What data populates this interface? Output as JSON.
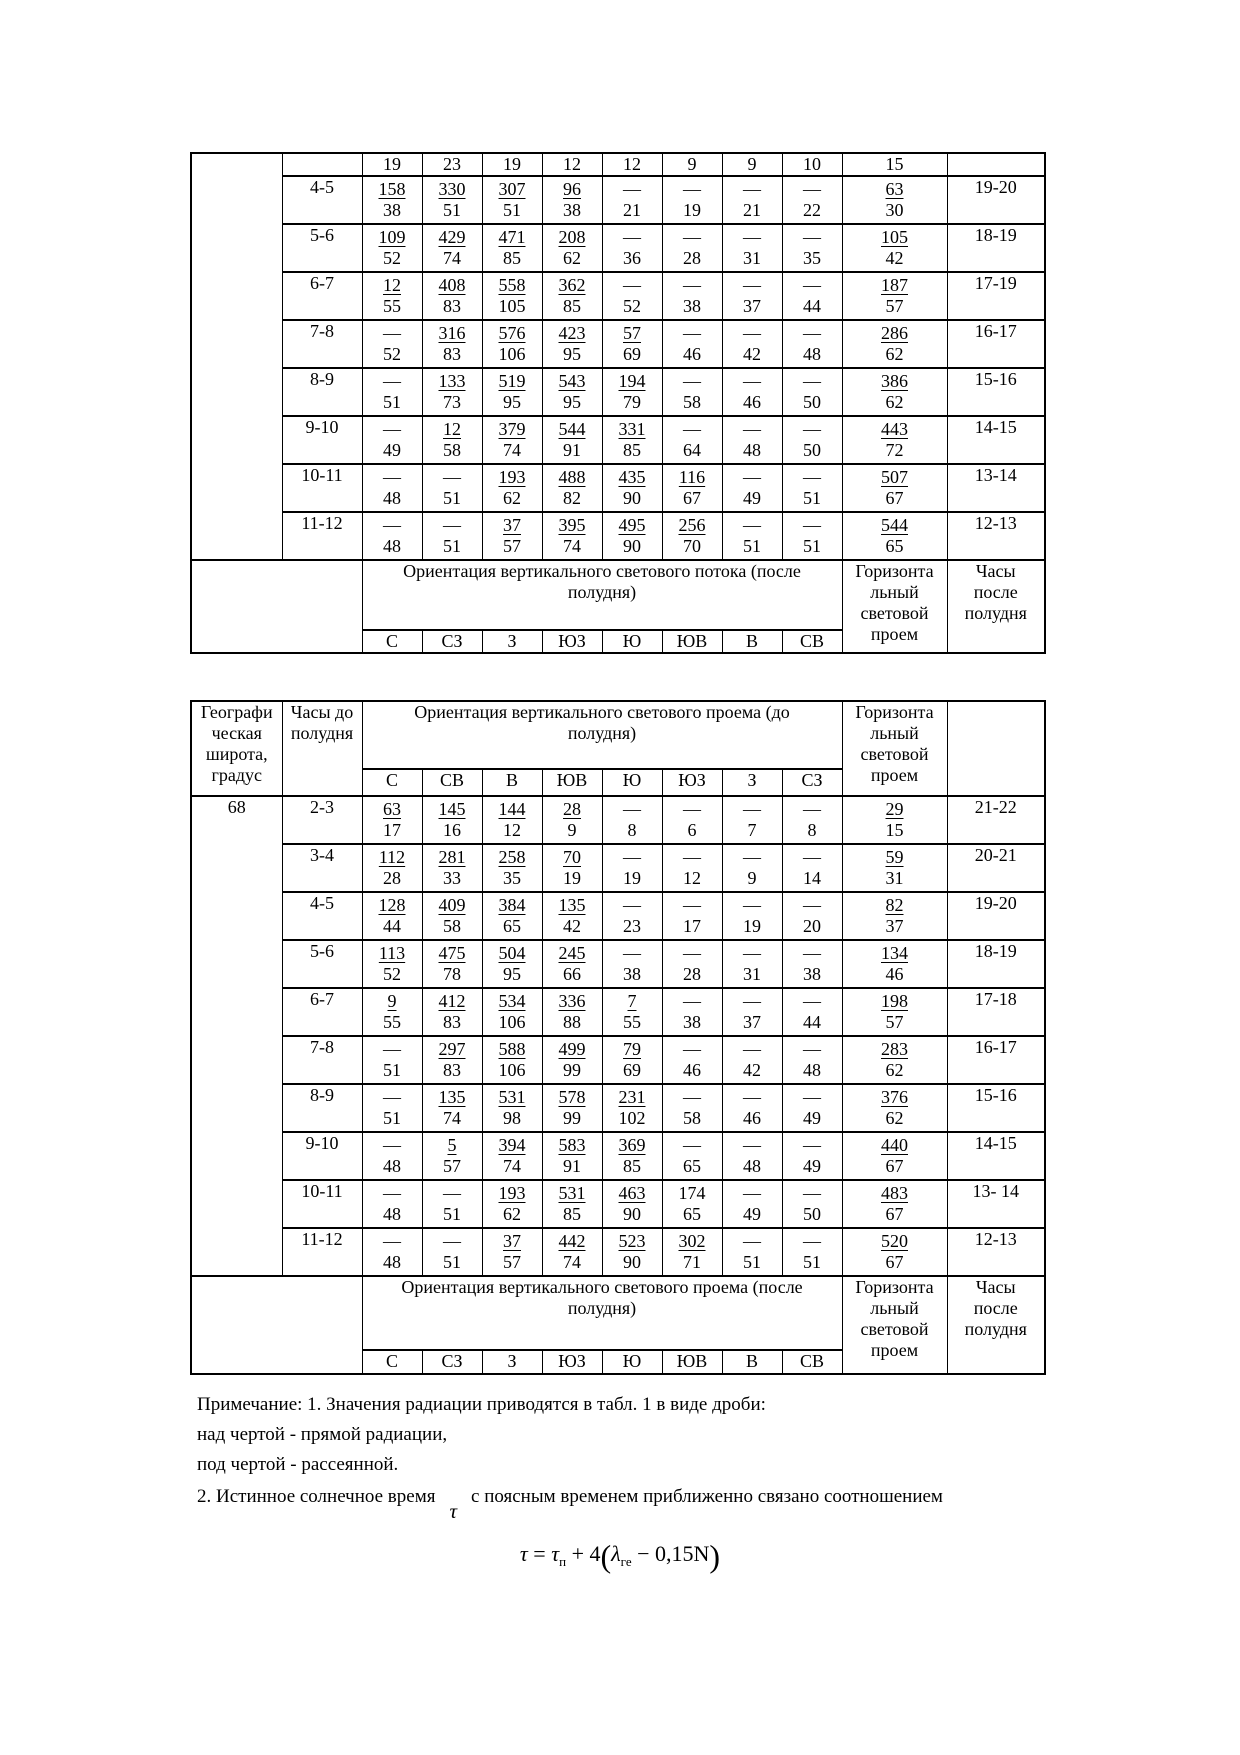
{
  "table1": {
    "partial_top_row": [
      "19",
      "23",
      "19",
      "12",
      "12",
      "9",
      "9",
      "10",
      "15"
    ],
    "rows": [
      {
        "hours": "4-5",
        "cells": [
          [
            "158",
            "38"
          ],
          [
            "330",
            "51"
          ],
          [
            "307",
            "51"
          ],
          [
            "96",
            "38"
          ],
          [
            "",
            "21"
          ],
          [
            "",
            "19"
          ],
          [
            "",
            "21"
          ],
          [
            "",
            "22"
          ]
        ],
        "horizontal": [
          "63",
          "30"
        ],
        "hours_after": "19-20"
      },
      {
        "hours": "5-6",
        "cells": [
          [
            "109",
            "52"
          ],
          [
            "429",
            "74"
          ],
          [
            "471",
            "85"
          ],
          [
            "208",
            "62"
          ],
          [
            "",
            "36"
          ],
          [
            "",
            "28"
          ],
          [
            "",
            "31"
          ],
          [
            "",
            "35"
          ]
        ],
        "horizontal": [
          "105",
          "42"
        ],
        "hours_after": "18-19"
      },
      {
        "hours": "6-7",
        "cells": [
          [
            "12",
            "55"
          ],
          [
            "408",
            "83"
          ],
          [
            "558",
            "105"
          ],
          [
            "362",
            "85"
          ],
          [
            "",
            "52"
          ],
          [
            "",
            "38"
          ],
          [
            "",
            "37"
          ],
          [
            "",
            "44"
          ]
        ],
        "horizontal": [
          "187",
          "57"
        ],
        "hours_after": "17-19"
      },
      {
        "hours": "7-8",
        "cells": [
          [
            "",
            "52"
          ],
          [
            "316",
            "83"
          ],
          [
            "576",
            "106"
          ],
          [
            "423",
            "95"
          ],
          [
            "57",
            "69"
          ],
          [
            "",
            "46"
          ],
          [
            "",
            "42"
          ],
          [
            "",
            "48"
          ]
        ],
        "horizontal": [
          "286",
          "62"
        ],
        "hours_after": "16-17"
      },
      {
        "hours": "8-9",
        "cells": [
          [
            "",
            "51"
          ],
          [
            "133",
            "73"
          ],
          [
            "519",
            "95"
          ],
          [
            "543",
            "95"
          ],
          [
            "194",
            "79"
          ],
          [
            "",
            "58"
          ],
          [
            "",
            "46"
          ],
          [
            "",
            "50"
          ]
        ],
        "horizontal": [
          "386",
          "62"
        ],
        "hours_after": "15-16"
      },
      {
        "hours": "9-10",
        "cells": [
          [
            "",
            "49"
          ],
          [
            "12",
            "58"
          ],
          [
            "379",
            "74"
          ],
          [
            "544",
            "91"
          ],
          [
            "331",
            "85"
          ],
          [
            "",
            "64"
          ],
          [
            "",
            "48"
          ],
          [
            "",
            "50"
          ]
        ],
        "horizontal": [
          "443",
          "72"
        ],
        "hours_after": "14-15"
      },
      {
        "hours": "10-11",
        "cells": [
          [
            "",
            "48"
          ],
          [
            "",
            "51"
          ],
          [
            "193",
            "62"
          ],
          [
            "488",
            "82"
          ],
          [
            "435",
            "90"
          ],
          [
            "116",
            "67"
          ],
          [
            "",
            "49"
          ],
          [
            "",
            "51"
          ]
        ],
        "horizontal": [
          "507",
          "67"
        ],
        "hours_after": "13-14"
      },
      {
        "hours": "11-12",
        "cells": [
          [
            "",
            "48"
          ],
          [
            "",
            "51"
          ],
          [
            "37",
            "57"
          ],
          [
            "395",
            "74"
          ],
          [
            "495",
            "90"
          ],
          [
            "256",
            "70"
          ],
          [
            "",
            "51"
          ],
          [
            "",
            "51"
          ]
        ],
        "horizontal": [
          "544",
          "65"
        ],
        "hours_after": "12-13"
      }
    ],
    "footer": {
      "orientation": "Ориентация вертикального светового потока (после\nполудня)",
      "directions": [
        "С",
        "СЗ",
        "З",
        "ЮЗ",
        "Ю",
        "ЮВ",
        "В",
        "СВ"
      ],
      "horizontal_header": "Горизонта\nльный\nсветовой\nпроем",
      "hours_header": "Часы\nпосле\nполудня"
    }
  },
  "table2": {
    "header": {
      "latitude": "Географи\nческая\nширота,\nградус",
      "hours_before": "Часы до\nполудня",
      "orientation": "Ориентация вертикального светового проема (до\nполудня)",
      "directions": [
        "С",
        "СВ",
        "В",
        "ЮВ",
        "Ю",
        "ЮЗ",
        "З",
        "СЗ"
      ],
      "horizontal_header": "Горизонта\nльный\nсветовой\nпроем"
    },
    "latitude_value": "68",
    "rows": [
      {
        "hours": "2-3",
        "cells": [
          [
            "63",
            "17"
          ],
          [
            "145",
            "16"
          ],
          [
            "144",
            "12"
          ],
          [
            "28",
            "9"
          ],
          [
            "",
            "8"
          ],
          [
            "",
            "6"
          ],
          [
            "",
            "7"
          ],
          [
            "",
            "8"
          ]
        ],
        "horizontal": [
          "29",
          "15"
        ],
        "hours_after": "21-22"
      },
      {
        "hours": "3-4",
        "cells": [
          [
            "112",
            "28"
          ],
          [
            "281",
            "33"
          ],
          [
            "258",
            "35"
          ],
          [
            "70",
            "19"
          ],
          [
            "",
            "19"
          ],
          [
            "",
            "12"
          ],
          [
            "",
            "9"
          ],
          [
            "",
            "14"
          ]
        ],
        "horizontal": [
          "59",
          "31"
        ],
        "hours_after": "20-21"
      },
      {
        "hours": "4-5",
        "cells": [
          [
            "128",
            "44"
          ],
          [
            "409",
            "58"
          ],
          [
            "384",
            "65"
          ],
          [
            "135",
            "42"
          ],
          [
            "",
            "23"
          ],
          [
            "",
            "17"
          ],
          [
            "",
            "19"
          ],
          [
            "",
            "20"
          ]
        ],
        "horizontal": [
          "82",
          "37"
        ],
        "hours_after": "19-20"
      },
      {
        "hours": "5-6",
        "cells": [
          [
            "113",
            "52"
          ],
          [
            "475",
            "78"
          ],
          [
            "504",
            "95"
          ],
          [
            "245",
            "66"
          ],
          [
            "",
            "38"
          ],
          [
            "",
            "28"
          ],
          [
            "",
            "31"
          ],
          [
            "",
            "38"
          ]
        ],
        "horizontal": [
          "134",
          "46"
        ],
        "hours_after": "18-19"
      },
      {
        "hours": "6-7",
        "cells": [
          [
            "9",
            "55"
          ],
          [
            "412",
            "83"
          ],
          [
            "534",
            "106"
          ],
          [
            "336",
            "88"
          ],
          [
            "7",
            "55"
          ],
          [
            "",
            "38"
          ],
          [
            "",
            "37"
          ],
          [
            "",
            "44"
          ]
        ],
        "horizontal": [
          "198",
          "57"
        ],
        "hours_after": "17-18"
      },
      {
        "hours": "7-8",
        "cells": [
          [
            "",
            "51"
          ],
          [
            "297",
            "83"
          ],
          [
            "588",
            "106"
          ],
          [
            "499",
            "99"
          ],
          [
            "79",
            "69"
          ],
          [
            "",
            "46"
          ],
          [
            "",
            "42"
          ],
          [
            "",
            "48"
          ]
        ],
        "horizontal": [
          "283",
          "62"
        ],
        "hours_after": "16-17"
      },
      {
        "hours": "8-9",
        "cells": [
          [
            "",
            "51"
          ],
          [
            "135",
            "74"
          ],
          [
            "531",
            "98"
          ],
          [
            "578",
            "99"
          ],
          [
            "231",
            "102"
          ],
          [
            "",
            "58"
          ],
          [
            "",
            "46"
          ],
          [
            "",
            "49"
          ]
        ],
        "horizontal": [
          "376",
          "62"
        ],
        "hours_after": "15-16"
      },
      {
        "hours": "9-10",
        "cells": [
          [
            "",
            "48"
          ],
          [
            "5",
            "57"
          ],
          [
            "394",
            "74"
          ],
          [
            "583",
            "91"
          ],
          [
            "369",
            "85"
          ],
          [
            "",
            "65"
          ],
          [
            "",
            "48"
          ],
          [
            "",
            "49"
          ]
        ],
        "horizontal": [
          "440",
          "67"
        ],
        "hours_after": "14-15"
      },
      {
        "hours": "10-11",
        "cells": [
          [
            "",
            "48"
          ],
          [
            "",
            "51"
          ],
          [
            "193",
            "62"
          ],
          [
            "531",
            "85"
          ],
          [
            "463",
            "90"
          ],
          [
            "174",
            "65",
            "plain"
          ],
          [
            "",
            "49"
          ],
          [
            "",
            "50"
          ]
        ],
        "horizontal": [
          "483",
          "67"
        ],
        "hours_after": "13- 14"
      },
      {
        "hours": "11-12",
        "cells": [
          [
            "",
            "48"
          ],
          [
            "",
            "51"
          ],
          [
            "37",
            "57"
          ],
          [
            "442",
            "74"
          ],
          [
            "523",
            "90"
          ],
          [
            "302",
            "71"
          ],
          [
            "",
            "51"
          ],
          [
            "",
            "51"
          ]
        ],
        "horizontal": [
          "520",
          "67"
        ],
        "hours_after": "12-13"
      }
    ],
    "footer": {
      "orientation": "Ориентация вертикального светового проема (после\nполудня)",
      "directions": [
        "С",
        "СЗ",
        "З",
        "ЮЗ",
        "Ю",
        "ЮВ",
        "В",
        "СВ"
      ],
      "horizontal_header": "Горизонта\nльный\nсветовой\nпроем",
      "hours_header": "Часы\nпосле\nполудня"
    }
  },
  "notes": {
    "line1": "Примечание: 1. Значения радиации приводятся в табл. 1 в виде дроби:",
    "line2": "над чертой - прямой радиации,",
    "line3": "под чертой - рассеянной.",
    "line4_prefix": "2. Истинное солнечное время",
    "line4_tau": "τ",
    "line4_suffix": "с поясным временем приближенно связано соотношением"
  },
  "formula": {
    "tau": "τ",
    "equals": "=",
    "tau_p": "τ",
    "tau_p_sub": "п",
    "plus_coef": "+ 4",
    "open_paren": "(",
    "lambda": "λ",
    "lambda_sub": "ге",
    "tail": "− 0,15N",
    "close_paren": ")"
  }
}
